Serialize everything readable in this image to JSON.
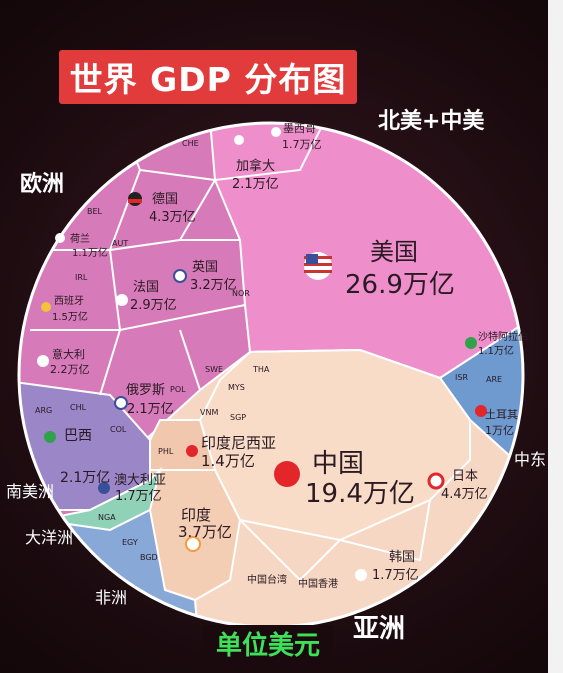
{
  "title": "世界 GDP 分布图",
  "unit_label": "单位美元",
  "regions": {
    "north_central_america": "北美+中美",
    "europe": "欧洲",
    "middle_east": "中东",
    "south_america": "南美洲",
    "oceania": "大洋洲",
    "africa": "非洲",
    "asia": "亚洲"
  },
  "chart_data": {
    "type": "voronoi-treemap",
    "title": "世界 GDP 分布图",
    "unit": "单位美元",
    "groups": [
      {
        "region": "北美+中美",
        "color": "#ef8fcd",
        "countries": [
          {
            "name": "美国",
            "value_label": "26.9万亿",
            "flag": "usa-flag"
          },
          {
            "name": "加拿大",
            "value_label": "2.1万亿"
          },
          {
            "name": "墨西哥",
            "value_label": "1.7万亿"
          }
        ]
      },
      {
        "region": "亚洲",
        "color": "#f7d9c4",
        "countries": [
          {
            "name": "中国",
            "value_label": "19.4万亿",
            "flag": "china-flag"
          },
          {
            "name": "日本",
            "value_label": "4.4万亿"
          },
          {
            "name": "印度",
            "value_label": "3.7万亿"
          },
          {
            "name": "印度尼西亚",
            "value_label": "1.4万亿"
          },
          {
            "name": "韩国",
            "value_label": "1.7万亿"
          },
          {
            "name": "中国台湾",
            "value_label": ""
          },
          {
            "name": "中国香港",
            "value_label": ""
          }
        ]
      },
      {
        "region": "欧洲",
        "color": "#d97bbd",
        "countries": [
          {
            "name": "德国",
            "value_label": "4.3万亿"
          },
          {
            "name": "英国",
            "value_label": "3.2万亿"
          },
          {
            "name": "法国",
            "value_label": "2.9万亿"
          },
          {
            "name": "意大利",
            "value_label": "2.2万亿"
          },
          {
            "name": "俄罗斯",
            "value_label": "2.1万亿"
          },
          {
            "name": "西班牙",
            "value_label": "1.5万亿"
          },
          {
            "name": "荷兰",
            "value_label": "1.1万亿"
          }
        ]
      },
      {
        "region": "中东",
        "color": "#6f9ad0",
        "countries": [
          {
            "name": "沙特阿拉伯",
            "value_label": "1.1万亿"
          },
          {
            "name": "土耳其",
            "value_label": "1万亿"
          }
        ]
      },
      {
        "region": "南美洲",
        "color": "#9b86c8",
        "countries": [
          {
            "name": "巴西",
            "value_label": "2.1万亿"
          }
        ]
      },
      {
        "region": "大洋洲",
        "color": "#8fd2b8",
        "countries": [
          {
            "name": "澳大利亚",
            "value_label": "1.7万亿"
          }
        ]
      },
      {
        "region": "非洲",
        "color": "#88a8d8",
        "countries": []
      }
    ],
    "small_labels": [
      "CHE",
      "BEL",
      "AUT",
      "IRL",
      "NOR",
      "SWE",
      "POL",
      "ARG",
      "CHL",
      "COL",
      "NGA",
      "EGY",
      "PHL",
      "THA",
      "MYS",
      "SGP",
      "VNM",
      "ISR",
      "ARE",
      "BGD"
    ]
  }
}
